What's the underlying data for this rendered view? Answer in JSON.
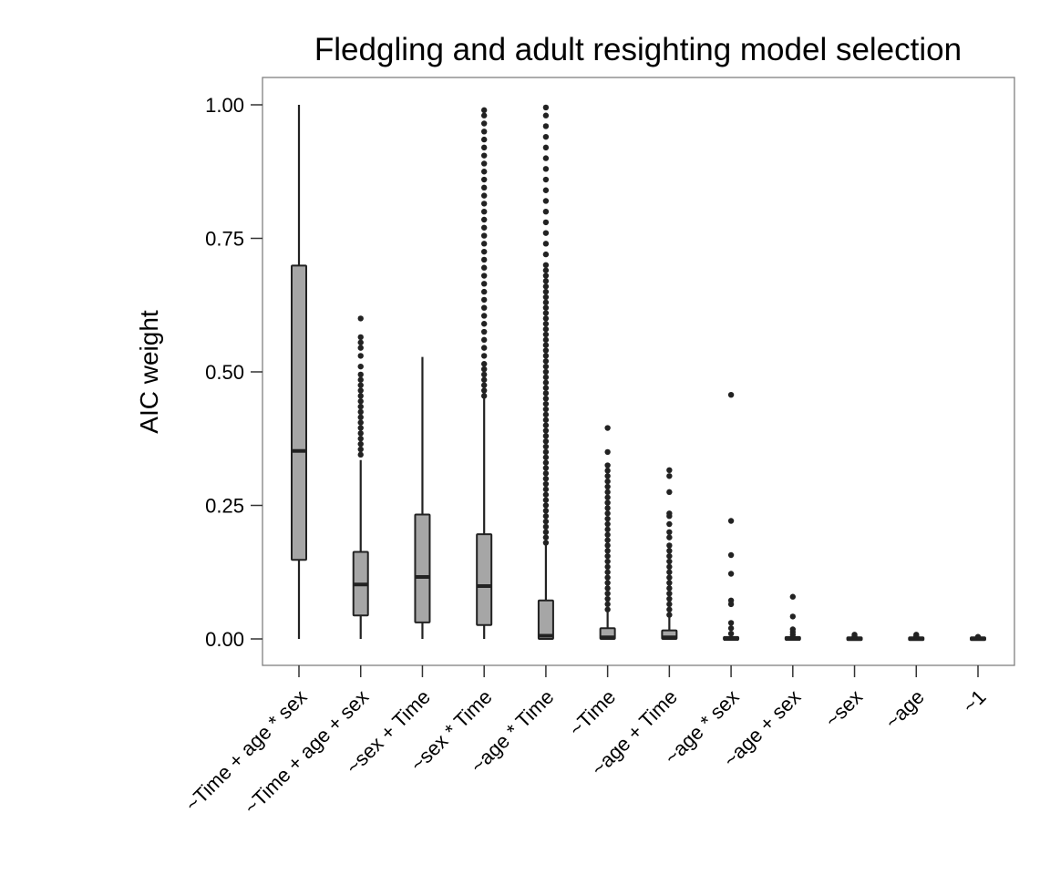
{
  "chart_data": {
    "type": "boxplot",
    "title": "Fledgling and adult resighting model selection",
    "xlabel": "",
    "ylabel": "AIC weight",
    "ylim": [
      -0.05,
      1.05
    ],
    "y_ticks": [
      "0.00",
      "0.25",
      "0.50",
      "0.75",
      "1.00"
    ],
    "y_tick_values": [
      0,
      0.25,
      0.5,
      0.75,
      1.0
    ],
    "grid": false,
    "colors": {
      "box_fill": "#a6a6a6",
      "line": "#222222",
      "frame": "#7f7f7f"
    },
    "categories": [
      "~Time + age * sex",
      "~Time + age + sex",
      "~sex + Time",
      "~sex * Time",
      "~age * Time",
      "~Time",
      "~age + Time",
      "~age * sex",
      "~age + sex",
      "~sex",
      "~age",
      "~1"
    ],
    "boxes": [
      {
        "whisker_low": 0.0,
        "q1": 0.148,
        "median": 0.352,
        "q3": 0.699,
        "whisker_high": 1.0,
        "outliers": []
      },
      {
        "whisker_low": 0.0,
        "q1": 0.044,
        "median": 0.102,
        "q3": 0.163,
        "whisker_high": 0.335,
        "outliers": [
          0.345,
          0.355,
          0.365,
          0.375,
          0.385,
          0.395,
          0.405,
          0.415,
          0.425,
          0.435,
          0.445,
          0.455,
          0.465,
          0.475,
          0.485,
          0.495,
          0.51,
          0.53,
          0.545,
          0.555,
          0.565,
          0.6
        ]
      },
      {
        "whisker_low": 0.0,
        "q1": 0.031,
        "median": 0.116,
        "q3": 0.233,
        "whisker_high": 0.528,
        "outliers": []
      },
      {
        "whisker_low": 0.0,
        "q1": 0.026,
        "median": 0.099,
        "q3": 0.196,
        "whisker_high": 0.45,
        "outliers": [
          0.455,
          0.465,
          0.475,
          0.485,
          0.495,
          0.505,
          0.515,
          0.53,
          0.545,
          0.56,
          0.575,
          0.59,
          0.605,
          0.62,
          0.635,
          0.65,
          0.665,
          0.68,
          0.695,
          0.71,
          0.725,
          0.74,
          0.755,
          0.77,
          0.785,
          0.8,
          0.815,
          0.83,
          0.845,
          0.86,
          0.875,
          0.89,
          0.905,
          0.92,
          0.935,
          0.95,
          0.965,
          0.98,
          0.99
        ]
      },
      {
        "whisker_low": 0.0,
        "q1": 0.0,
        "median": 0.006,
        "q3": 0.072,
        "whisker_high": 0.175,
        "outliers": [
          0.18,
          0.19,
          0.2,
          0.21,
          0.22,
          0.23,
          0.24,
          0.25,
          0.26,
          0.27,
          0.28,
          0.29,
          0.3,
          0.31,
          0.32,
          0.33,
          0.34,
          0.35,
          0.36,
          0.37,
          0.38,
          0.39,
          0.4,
          0.41,
          0.42,
          0.43,
          0.44,
          0.45,
          0.46,
          0.47,
          0.48,
          0.49,
          0.5,
          0.51,
          0.52,
          0.53,
          0.54,
          0.55,
          0.56,
          0.57,
          0.58,
          0.59,
          0.6,
          0.61,
          0.62,
          0.63,
          0.64,
          0.65,
          0.66,
          0.67,
          0.68,
          0.69,
          0.7,
          0.72,
          0.74,
          0.76,
          0.78,
          0.8,
          0.82,
          0.84,
          0.86,
          0.88,
          0.9,
          0.92,
          0.94,
          0.96,
          0.98,
          0.995
        ]
      },
      {
        "whisker_low": 0.0,
        "q1": 0.0,
        "median": 0.003,
        "q3": 0.02,
        "whisker_high": 0.05,
        "outliers": [
          0.055,
          0.065,
          0.075,
          0.085,
          0.095,
          0.105,
          0.115,
          0.125,
          0.135,
          0.145,
          0.155,
          0.165,
          0.175,
          0.185,
          0.195,
          0.205,
          0.215,
          0.225,
          0.235,
          0.245,
          0.255,
          0.265,
          0.275,
          0.285,
          0.295,
          0.305,
          0.315,
          0.325,
          0.35,
          0.395
        ]
      },
      {
        "whisker_low": 0.0,
        "q1": 0.0,
        "median": 0.003,
        "q3": 0.016,
        "whisker_high": 0.04,
        "outliers": [
          0.045,
          0.055,
          0.065,
          0.075,
          0.085,
          0.095,
          0.105,
          0.115,
          0.125,
          0.135,
          0.145,
          0.155,
          0.165,
          0.175,
          0.19,
          0.2,
          0.215,
          0.23,
          0.235,
          0.275,
          0.305,
          0.316
        ]
      },
      {
        "whisker_low": 0.0,
        "q1": 0.0,
        "median": 0.0,
        "q3": 0.002,
        "whisker_high": 0.004,
        "outliers": [
          0.01,
          0.02,
          0.03,
          0.065,
          0.072,
          0.122,
          0.157,
          0.221,
          0.457
        ]
      },
      {
        "whisker_low": 0.0,
        "q1": 0.0,
        "median": 0.0,
        "q3": 0.002,
        "whisker_high": 0.004,
        "outliers": [
          0.008,
          0.013,
          0.018,
          0.042,
          0.079
        ]
      },
      {
        "whisker_low": 0.0,
        "q1": 0.0,
        "median": 0.0,
        "q3": 0.001,
        "whisker_high": 0.002,
        "outliers": [
          0.005,
          0.008
        ]
      },
      {
        "whisker_low": 0.0,
        "q1": 0.0,
        "median": 0.0,
        "q3": 0.001,
        "whisker_high": 0.002,
        "outliers": [
          0.005,
          0.008
        ]
      },
      {
        "whisker_low": 0.0,
        "q1": 0.0,
        "median": 0.0,
        "q3": 0.001,
        "whisker_high": 0.002,
        "outliers": [
          0.004
        ]
      }
    ]
  }
}
